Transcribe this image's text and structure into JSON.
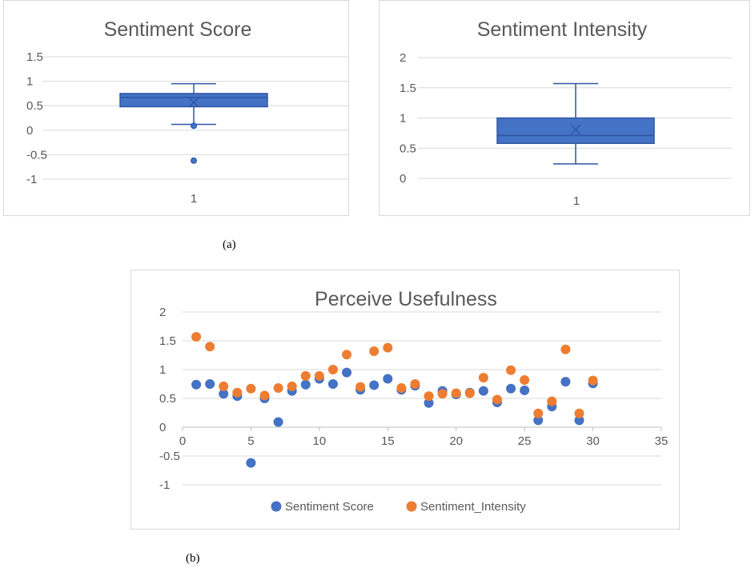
{
  "colors": {
    "box_fill": "#4472C4",
    "box_stroke": "#2F55A3",
    "series_blue": "#4472C4",
    "series_orange": "#ED7D31",
    "grid": "#d9d9d9",
    "text": "#595959"
  },
  "captions": {
    "a": "(a)",
    "b": "(b)"
  },
  "chart_data": [
    {
      "type": "box",
      "title": "Sentiment Score",
      "categories": [
        "1"
      ],
      "yticks": [
        "1.5",
        "1",
        "0.5",
        "0",
        "-0.5",
        "-1"
      ],
      "ylim": [
        -1,
        1.5
      ],
      "whisker_low": 0.12,
      "q1": 0.48,
      "median": 0.67,
      "q3": 0.75,
      "whisker_high": 0.95,
      "mean": 0.57,
      "outliers": [
        0.09,
        -0.62
      ]
    },
    {
      "type": "box",
      "title": "Sentiment Intensity",
      "categories": [
        "1"
      ],
      "yticks": [
        "2",
        "1.5",
        "1",
        "0.5",
        "0"
      ],
      "ylim": [
        0,
        2
      ],
      "whisker_low": 0.24,
      "q1": 0.58,
      "median": 0.71,
      "q3": 1.0,
      "whisker_high": 1.57,
      "mean": 0.81,
      "outliers": []
    },
    {
      "type": "scatter",
      "title": "Perceive Usefulness",
      "xticks": [
        "0",
        "5",
        "10",
        "15",
        "20",
        "25",
        "30",
        "35"
      ],
      "yticks": [
        "2",
        "1.5",
        "1",
        "0.5",
        "0",
        "-0.5",
        "-1"
      ],
      "xlim": [
        0,
        35
      ],
      "ylim": [
        -1,
        2
      ],
      "legend_position": "bottom",
      "series": [
        {
          "name": "Sentiment Score",
          "x": [
            1,
            2,
            3,
            4,
            5,
            6,
            7,
            8,
            9,
            10,
            11,
            12,
            13,
            14,
            15,
            16,
            17,
            18,
            19,
            20,
            21,
            22,
            23,
            24,
            25,
            26,
            27,
            28,
            29,
            30
          ],
          "y": [
            0.74,
            0.75,
            0.58,
            0.54,
            -0.62,
            0.5,
            0.09,
            0.63,
            0.74,
            0.84,
            0.75,
            0.95,
            0.65,
            0.73,
            0.84,
            0.65,
            0.72,
            0.42,
            0.63,
            0.57,
            0.6,
            0.63,
            0.43,
            0.67,
            0.64,
            0.12,
            0.36,
            0.79,
            0.12,
            0.76
          ]
        },
        {
          "name": "Sentiment_Intensity",
          "x": [
            1,
            2,
            3,
            4,
            5,
            6,
            7,
            8,
            9,
            10,
            11,
            12,
            13,
            14,
            15,
            16,
            17,
            18,
            19,
            20,
            21,
            22,
            23,
            24,
            25,
            26,
            27,
            28,
            29,
            30
          ],
          "y": [
            1.57,
            1.4,
            0.71,
            0.6,
            0.67,
            0.55,
            0.68,
            0.71,
            0.89,
            0.89,
            1.0,
            1.26,
            0.7,
            1.32,
            1.38,
            0.68,
            0.75,
            0.54,
            0.58,
            0.59,
            0.59,
            0.86,
            0.48,
            0.99,
            0.82,
            0.24,
            0.45,
            1.35,
            0.24,
            0.81
          ]
        }
      ]
    }
  ]
}
